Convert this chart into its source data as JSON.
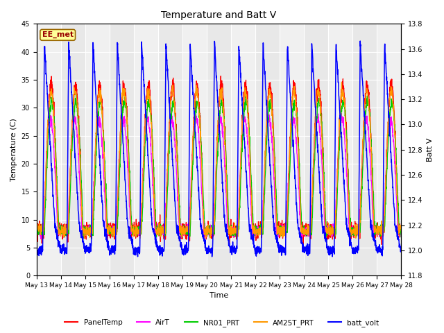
{
  "title": "Temperature and Batt V",
  "xlabel": "Time",
  "ylabel_left": "Temperature (C)",
  "ylabel_right": "Batt V",
  "left_ylim": [
    0,
    45
  ],
  "right_ylim": [
    11.8,
    13.8
  ],
  "left_yticks": [
    0,
    5,
    10,
    15,
    20,
    25,
    30,
    35,
    40,
    45
  ],
  "right_yticks": [
    11.8,
    12.0,
    12.2,
    12.4,
    12.6,
    12.8,
    13.0,
    13.2,
    13.4,
    13.6,
    13.8
  ],
  "x_tick_labels": [
    "May 13",
    "May 14",
    "May 15",
    "May 16",
    "May 17",
    "May 18",
    "May 19",
    "May 20",
    "May 21",
    "May 22",
    "May 23",
    "May 24",
    "May 25",
    "May 26",
    "May 27",
    "May 28"
  ],
  "annotation_text": "EE_met",
  "annotation_box_color": "#ffff99",
  "annotation_text_color": "#990000",
  "legend_labels": [
    "PanelTemp",
    "AirT",
    "NR01_PRT",
    "AM25T_PRT",
    "batt_volt"
  ],
  "line_colors": {
    "PanelTemp": "#ff0000",
    "AirT": "#ff00ff",
    "NR01_PRT": "#00cc00",
    "AM25T_PRT": "#ff9900",
    "batt_volt": "#0000ff"
  },
  "plot_bg_color": "#e8e8e8",
  "alt_bg_color": "#d0d0d0",
  "figsize": [
    6.4,
    4.8
  ],
  "dpi": 100
}
